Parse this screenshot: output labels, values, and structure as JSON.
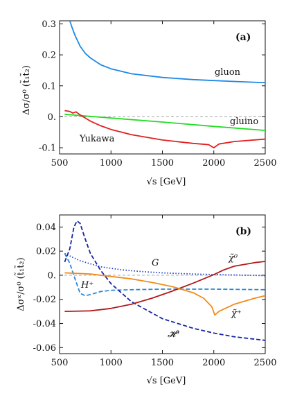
{
  "chart_data": [
    {
      "type": "line",
      "panel_label": "(a)",
      "xlabel": "√s [GeV]",
      "ylabel": "Δσ/σ⁰ (t̃₁t̃₂)",
      "xlim": [
        500,
        2500
      ],
      "ylim": [
        -0.12,
        0.31
      ],
      "xticks": [
        500,
        1000,
        1500,
        2000,
        2500
      ],
      "xtick_labels": [
        "500",
        "1000",
        "1500",
        "2000",
        "2500"
      ],
      "yticks": [
        -0.1,
        0.0,
        0.1,
        0.2,
        0.3
      ],
      "ytick_labels": [
        "-0.1",
        "0.",
        "0.1",
        "0.2",
        "0.3"
      ],
      "reference_line": 0.0,
      "series": [
        {
          "name": "gluon",
          "color": "#1e88e5",
          "dash": "solid",
          "x": [
            600,
            620,
            650,
            700,
            750,
            800,
            900,
            1000,
            1200,
            1500,
            1800,
            2000,
            2200,
            2500
          ],
          "y": [
            0.31,
            0.29,
            0.263,
            0.228,
            0.205,
            0.19,
            0.168,
            0.155,
            0.139,
            0.127,
            0.12,
            0.117,
            0.114,
            0.11
          ]
        },
        {
          "name": "gluino",
          "color": "#22dd22",
          "dash": "solid",
          "x": [
            550,
            1000,
            1500,
            2000,
            2500
          ],
          "y": [
            0.008,
            -0.004,
            -0.017,
            -0.031,
            -0.044
          ]
        },
        {
          "name": "Yukawa",
          "color": "#e02020",
          "dash": "solid",
          "x": [
            550,
            600,
            630,
            660,
            700,
            800,
            900,
            1000,
            1200,
            1500,
            1800,
            1950,
            2000,
            2050,
            2200,
            2500
          ],
          "y": [
            0.02,
            0.017,
            0.012,
            0.016,
            0.006,
            -0.014,
            -0.029,
            -0.041,
            -0.058,
            -0.075,
            -0.086,
            -0.09,
            -0.1,
            -0.088,
            -0.08,
            -0.072
          ]
        }
      ]
    },
    {
      "type": "line",
      "panel_label": "(b)",
      "xlabel": "√s [GeV]",
      "ylabel": "Δσˣ/σ⁰ (t̃₁t̃₂)",
      "xlim": [
        500,
        2500
      ],
      "ylim": [
        -0.065,
        0.05
      ],
      "xticks": [
        500,
        1000,
        1500,
        2000,
        2500
      ],
      "xtick_labels": [
        "500",
        "1000",
        "1500",
        "2000",
        "2500"
      ],
      "yticks": [
        -0.06,
        -0.04,
        -0.02,
        0.0,
        0.02,
        0.04
      ],
      "ytick_labels": [
        "-0.06",
        "-0.04",
        "-0.02",
        "0.",
        "0.02",
        "0.04"
      ],
      "reference_line": 0.0,
      "series": [
        {
          "name": "G",
          "color": "#1e3fd0",
          "dash": "dotted",
          "x": [
            550,
            700,
            900,
            1100,
            1300,
            1500,
            1800,
            2100,
            2500
          ],
          "y": [
            0.018,
            0.012,
            0.007,
            0.0045,
            0.003,
            0.002,
            0.001,
            0.0004,
            -0.0003
          ]
        },
        {
          "name": "H⁺",
          "color": "#2a8ad8",
          "dash": "dashed",
          "x": [
            550,
            600,
            650,
            700,
            750,
            800,
            900,
            1000,
            1200,
            1500,
            2000,
            2500
          ],
          "y": [
            0.018,
            0.01,
            -0.003,
            -0.015,
            -0.017,
            -0.016,
            -0.0135,
            -0.0125,
            -0.012,
            -0.0115,
            -0.0115,
            -0.012
          ]
        },
        {
          "name": "𝓗⁰",
          "color": "#1523a8",
          "dash": "dashed",
          "x": [
            550,
            600,
            640,
            670,
            700,
            750,
            800,
            900,
            1000,
            1200,
            1500,
            1800,
            2000,
            2200,
            2500
          ],
          "y": [
            0.011,
            0.022,
            0.04,
            0.045,
            0.043,
            0.03,
            0.018,
            0.004,
            -0.007,
            -0.022,
            -0.036,
            -0.044,
            -0.048,
            -0.051,
            -0.054
          ]
        },
        {
          "name": "χ̃⁰",
          "color": "#b01a1a",
          "dash": "solid",
          "x": [
            550,
            800,
            1000,
            1200,
            1400,
            1600,
            1800,
            2000,
            2100,
            2200,
            2400,
            2500
          ],
          "y": [
            -0.03,
            -0.0295,
            -0.0275,
            -0.024,
            -0.019,
            -0.013,
            -0.0065,
            0.0005,
            0.0045,
            0.0075,
            0.0105,
            0.0115
          ]
        },
        {
          "name": "χ̃⁺",
          "color": "#f08c1a",
          "dash": "solid",
          "x": [
            550,
            800,
            1000,
            1200,
            1400,
            1600,
            1800,
            1900,
            1980,
            2010,
            2050,
            2200,
            2400,
            2500
          ],
          "y": [
            0.002,
            0.001,
            -0.001,
            -0.003,
            -0.006,
            -0.0095,
            -0.0145,
            -0.019,
            -0.026,
            -0.033,
            -0.03,
            -0.024,
            -0.019,
            -0.017
          ]
        }
      ]
    }
  ]
}
